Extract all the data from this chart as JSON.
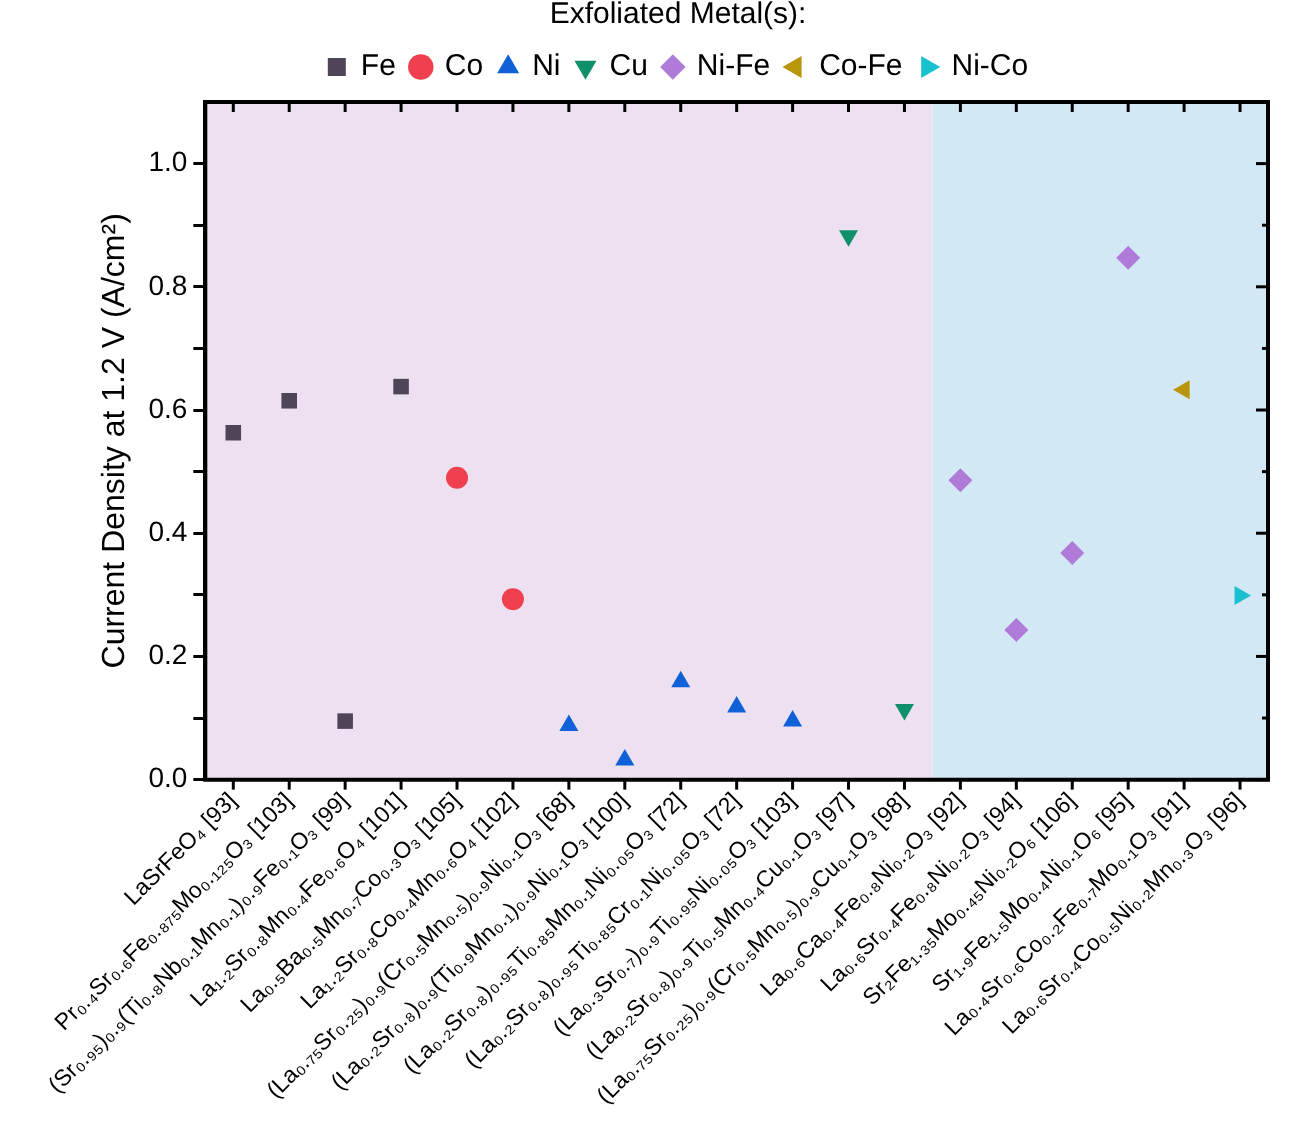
{
  "chart_data": {
    "type": "scatter",
    "ylabel": "Current Density at 1.2 V (A/cm²)",
    "legend_title": "Exfoliated Metal(s):",
    "legend": "top",
    "grid": false,
    "categories": [
      "LaSrFeO₄ [93]",
      "Pr₀.₄Sr₀.₆Fe₀.₈₇₅Mo₀.₁₂₅O₃ [103]",
      "(Sr₀.₉₅)₀.₉(Ti₀.₈Nb₀.₁Mn₀.₁)₀.₉Fe₀.₁O₃ [99]",
      "La₁.₂Sr₀.₈Mn₀.₄Fe₀.₆O₄ [101]",
      "La₀.₅Ba₀.₅Mn₀.₇Co₀.₃O₃ [105]",
      "La₁.₂Sr₀.₈Co₀.₄Mn₀.₆O₄ [102]",
      "(La₀.₇₅Sr₀.₂₅)₀.₉(Cr₀.₅Mn₀.₅)₀.₉Ni₀.₁O₃ [68]",
      "(La₀.₂Sr₀.₈)₀.₉(Ti₀.₉Mn₀.₁)₀.₉Ni₀.₁O₃ [100]",
      "(La₀.₂Sr₀.₈)₀.₉₅Ti₀.₈₅Mn₀.₁Ni₀.₀₅O₃ [72]",
      "(La₀.₂Sr₀.₈)₀.₉₅Ti₀.₈₅Cr₀.₁Ni₀.₀₅O₃ [72]",
      "(La₀.₃Sr₀.₇)₀.₉Ti₀.₉₅Ni₀.₀₅O₃ [103]",
      "(La₀.₂Sr₀.₈)₀.₉Ti₀.₅Mn₀.₄Cu₀.₁O₃ [97]",
      "(La₀.₇₅Sr₀.₂₅)₀.₉(Cr₀.₅Mn₀.₅)₀.₉Cu₀.₁O₃ [98]",
      "La₀.₆Ca₀.₄Fe₀.₈Ni₀.₂O₃ [92]",
      "La₀.₆Sr₀.₄Fe₀.₈Ni₀.₂O₃ [94]",
      "Sr₂Fe₁.₃₅Mo₀.₄₅Ni₀.₂O₆ [106]",
      "Sr₁.₉Fe₁.₅Mo₀.₄Ni₀.₁O₆ [95]",
      "La₀.₄Sr₀.₆Co₀.₂Fe₀.₇Mo₀.₁O₃ [91]",
      "La₀.₆Sr₀.₄Co₀.₅Ni₀.₂Mn₀.₃O₃ [96]"
    ],
    "ylim": [
      0,
      1.1
    ],
    "yticks": [
      {
        "value": 0,
        "label": "0.0"
      },
      {
        "value": 0.1,
        "label": null
      },
      {
        "value": 0.2,
        "label": "0.2"
      },
      {
        "value": 0.3,
        "label": null
      },
      {
        "value": 0.4,
        "label": "0.4"
      },
      {
        "value": 0.5,
        "label": null
      },
      {
        "value": 0.6,
        "label": "0.6"
      },
      {
        "value": 0.7,
        "label": null
      },
      {
        "value": 0.8,
        "label": "0.8"
      },
      {
        "value": 0.9,
        "label": null
      },
      {
        "value": 1,
        "label": "1.0"
      }
    ],
    "bands": [
      {
        "axis": "x",
        "from": "LaSrFeO₄ [93]",
        "to": "(La₀.₇₅Sr₀.₂₅)₀.₉(Cr₀.₅Mn₀.₅)₀.₉Cu₀.₁O₃ [98]",
        "color": "#ede0f0"
      },
      {
        "axis": "x",
        "from": "La₀.₆Ca₀.₄Fe₀.₈Ni₀.₂O₃ [92]",
        "to": "La₀.₆Sr₀.₄Co₀.₅Ni₀.₂Mn₀.₃O₃ [96]",
        "color": "#d3e8f5"
      }
    ],
    "series": [
      {
        "name": "Fe",
        "color": "#4f4458",
        "marker": "square",
        "values": [
          0.563,
          0.615,
          0.095,
          0.638,
          null,
          null,
          null,
          null,
          null,
          null,
          null,
          null,
          null,
          null,
          null,
          null,
          null,
          null,
          null
        ]
      },
      {
        "name": "Co",
        "color": "#f0404f",
        "marker": "circle",
        "values": [
          null,
          null,
          null,
          null,
          0.49,
          0.293,
          null,
          null,
          null,
          null,
          null,
          null,
          null,
          null,
          null,
          null,
          null,
          null,
          null
        ]
      },
      {
        "name": "Ni",
        "color": "#1060d8",
        "marker": "triangle",
        "values": [
          null,
          null,
          null,
          null,
          null,
          null,
          0.088,
          0.032,
          0.159,
          0.118,
          0.095,
          null,
          null,
          null,
          null,
          null,
          null,
          null,
          null
        ]
      },
      {
        "name": "Cu",
        "color": "#10906a",
        "marker": "triangle-down",
        "values": [
          null,
          null,
          null,
          null,
          null,
          null,
          null,
          null,
          null,
          null,
          null,
          0.883,
          0.114,
          null,
          null,
          null,
          null,
          null,
          null
        ]
      },
      {
        "name": "Ni-Fe",
        "color": "#b07ad8",
        "marker": "diamond",
        "values": [
          null,
          null,
          null,
          null,
          null,
          null,
          null,
          null,
          null,
          null,
          null,
          null,
          null,
          0.486,
          0.243,
          0.368,
          0.847,
          null,
          null
        ]
      },
      {
        "name": "Co-Fe",
        "color": "#b8960a",
        "marker": "triangle-left",
        "values": [
          null,
          null,
          null,
          null,
          null,
          null,
          null,
          null,
          null,
          null,
          null,
          null,
          null,
          null,
          null,
          null,
          null,
          0.633,
          null
        ]
      },
      {
        "name": "Ni-Co",
        "color": "#18c0d0",
        "marker": "triangle-right",
        "values": [
          null,
          null,
          null,
          null,
          null,
          null,
          null,
          null,
          null,
          null,
          null,
          null,
          null,
          null,
          null,
          null,
          null,
          null,
          0.299
        ]
      }
    ]
  }
}
